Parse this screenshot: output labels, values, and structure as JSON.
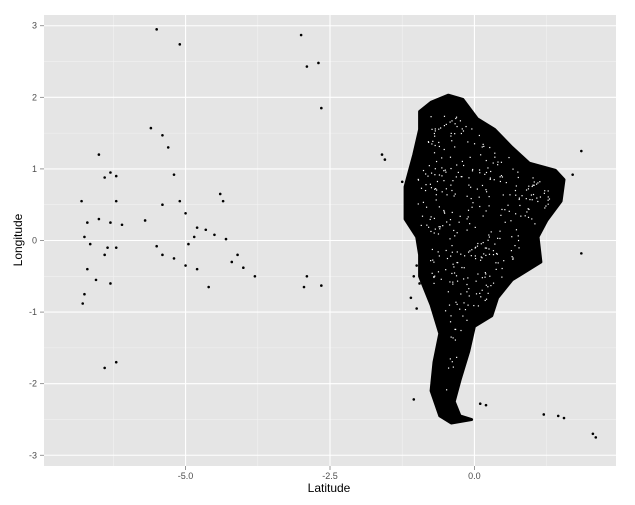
{
  "chart_data": {
    "type": "scatter",
    "xlabel": "Latitude",
    "ylabel": "Longitude",
    "xlim": [
      -7.45,
      2.45
    ],
    "ylim": [
      -3.15,
      3.15
    ],
    "x_ticks": [
      {
        "value": -5.0,
        "label": "-5.0"
      },
      {
        "value": -2.5,
        "label": "-2.5"
      },
      {
        "value": 0.0,
        "label": "0.0"
      }
    ],
    "y_ticks": [
      {
        "value": 3,
        "label": "3"
      },
      {
        "value": 2,
        "label": "2"
      },
      {
        "value": 1,
        "label": "1"
      },
      {
        "value": 0,
        "label": "0"
      },
      {
        "value": -1,
        "label": "-1"
      },
      {
        "value": -2,
        "label": "-2"
      },
      {
        "value": -3,
        "label": "-3"
      }
    ],
    "grid": true,
    "colors": {
      "panel": "#e5e5e5",
      "grid_major": "#ffffff",
      "grid_minor": "#f2f2f2",
      "point": "#000000"
    },
    "mainland_outline": [
      [
        -0.95,
        1.8
      ],
      [
        -0.75,
        1.93
      ],
      [
        -0.45,
        2.03
      ],
      [
        -0.2,
        1.97
      ],
      [
        0.05,
        1.7
      ],
      [
        0.35,
        1.55
      ],
      [
        0.65,
        1.3
      ],
      [
        0.95,
        1.08
      ],
      [
        1.4,
        0.98
      ],
      [
        1.55,
        0.85
      ],
      [
        1.5,
        0.55
      ],
      [
        1.25,
        0.28
      ],
      [
        1.1,
        0.05
      ],
      [
        1.15,
        -0.3
      ],
      [
        0.85,
        -0.45
      ],
      [
        0.65,
        -0.55
      ],
      [
        0.4,
        -0.8
      ],
      [
        0.3,
        -1.05
      ],
      [
        0.0,
        -1.2
      ],
      [
        -0.1,
        -1.55
      ],
      [
        -0.25,
        -1.95
      ],
      [
        -0.35,
        -2.25
      ],
      [
        -0.25,
        -2.45
      ],
      [
        -0.05,
        -2.5
      ],
      [
        -0.4,
        -2.55
      ],
      [
        -0.6,
        -2.45
      ],
      [
        -0.75,
        -2.1
      ],
      [
        -0.7,
        -1.7
      ],
      [
        -0.6,
        -1.3
      ],
      [
        -0.75,
        -0.9
      ],
      [
        -0.95,
        -0.5
      ],
      [
        -0.95,
        -0.2
      ],
      [
        -1.0,
        0.05
      ],
      [
        -1.2,
        0.3
      ],
      [
        -1.2,
        0.75
      ],
      [
        -1.05,
        1.2
      ],
      [
        -0.95,
        1.55
      ],
      [
        -0.95,
        1.8
      ]
    ],
    "islands": [
      {
        "x": -5.5,
        "y": 2.95
      },
      {
        "x": -5.1,
        "y": 2.74
      },
      {
        "x": -3.0,
        "y": 2.87
      },
      {
        "x": -2.7,
        "y": 2.48
      },
      {
        "x": -2.9,
        "y": 2.43
      },
      {
        "x": -2.65,
        "y": 1.85
      },
      {
        "x": -5.6,
        "y": 1.57
      },
      {
        "x": -5.4,
        "y": 1.47
      },
      {
        "x": -5.3,
        "y": 1.3
      },
      {
        "x": -6.5,
        "y": 1.2
      },
      {
        "x": -6.3,
        "y": 0.95
      },
      {
        "x": -6.4,
        "y": 0.88
      },
      {
        "x": -6.2,
        "y": 0.9
      },
      {
        "x": -5.2,
        "y": 0.92
      },
      {
        "x": -5.0,
        "y": 0.38
      },
      {
        "x": -6.8,
        "y": 0.55
      },
      {
        "x": -6.2,
        "y": 0.55
      },
      {
        "x": -5.4,
        "y": 0.5
      },
      {
        "x": -5.1,
        "y": 0.55
      },
      {
        "x": -4.4,
        "y": 0.65
      },
      {
        "x": -4.35,
        "y": 0.55
      },
      {
        "x": -6.7,
        "y": 0.25
      },
      {
        "x": -6.5,
        "y": 0.3
      },
      {
        "x": -6.3,
        "y": 0.25
      },
      {
        "x": -6.1,
        "y": 0.22
      },
      {
        "x": -5.7,
        "y": 0.28
      },
      {
        "x": -4.8,
        "y": 0.18
      },
      {
        "x": -4.65,
        "y": 0.15
      },
      {
        "x": -4.5,
        "y": 0.08
      },
      {
        "x": -4.3,
        "y": 0.02
      },
      {
        "x": -6.75,
        "y": 0.05
      },
      {
        "x": -6.65,
        "y": -0.05
      },
      {
        "x": -6.35,
        "y": -0.1
      },
      {
        "x": -6.4,
        "y": -0.2
      },
      {
        "x": -6.2,
        "y": -0.1
      },
      {
        "x": -5.5,
        "y": -0.08
      },
      {
        "x": -5.4,
        "y": -0.2
      },
      {
        "x": -5.2,
        "y": -0.25
      },
      {
        "x": -4.95,
        "y": -0.05
      },
      {
        "x": -4.85,
        "y": 0.05
      },
      {
        "x": -4.1,
        "y": -0.2
      },
      {
        "x": -4.2,
        "y": -0.3
      },
      {
        "x": -5.0,
        "y": -0.35
      },
      {
        "x": -4.8,
        "y": -0.4
      },
      {
        "x": -4.0,
        "y": -0.38
      },
      {
        "x": -3.8,
        "y": -0.5
      },
      {
        "x": -6.7,
        "y": -0.4
      },
      {
        "x": -6.55,
        "y": -0.55
      },
      {
        "x": -6.3,
        "y": -0.6
      },
      {
        "x": -6.75,
        "y": -0.75
      },
      {
        "x": -6.78,
        "y": -0.88
      },
      {
        "x": -4.6,
        "y": -0.65
      },
      {
        "x": -2.9,
        "y": -0.5
      },
      {
        "x": -2.95,
        "y": -0.65
      },
      {
        "x": -2.65,
        "y": -0.63
      },
      {
        "x": -1.6,
        "y": 1.2
      },
      {
        "x": -1.55,
        "y": 1.13
      },
      {
        "x": -1.25,
        "y": 0.82
      },
      {
        "x": -1.0,
        "y": -0.35
      },
      {
        "x": -1.05,
        "y": -0.5
      },
      {
        "x": -0.95,
        "y": -0.6
      },
      {
        "x": -1.1,
        "y": -0.8
      },
      {
        "x": -1.0,
        "y": -0.95
      },
      {
        "x": -1.05,
        "y": -2.22
      },
      {
        "x": -6.4,
        "y": -1.78
      },
      {
        "x": -6.2,
        "y": -1.7
      },
      {
        "x": 0.1,
        "y": -2.28
      },
      {
        "x": 0.2,
        "y": -2.3
      },
      {
        "x": 1.45,
        "y": -2.45
      },
      {
        "x": 1.55,
        "y": -2.48
      },
      {
        "x": 1.2,
        "y": -2.43
      },
      {
        "x": 2.05,
        "y": -2.7
      },
      {
        "x": 2.1,
        "y": -2.75
      },
      {
        "x": 1.85,
        "y": 1.25
      },
      {
        "x": 1.85,
        "y": -0.18
      },
      {
        "x": 1.7,
        "y": 0.92
      }
    ]
  }
}
